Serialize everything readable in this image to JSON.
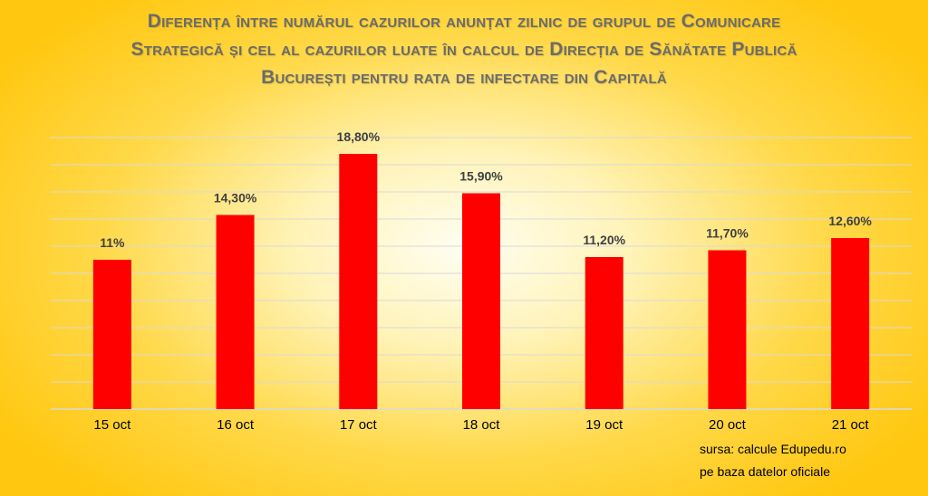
{
  "chart_data": {
    "type": "bar",
    "title_lines": [
      "Diferența între numărul cazurilor anunțat zilnic de grupul de Comunicare",
      "Strategică și cel al cazurilor luate în calcul de Direcția de Sănătate Publică",
      "București pentru rata de infectare din Capitală"
    ],
    "categories": [
      "15 oct",
      "16 oct",
      "17 oct",
      "18 oct",
      "19 oct",
      "20 oct",
      "21 oct"
    ],
    "values": [
      11,
      14.3,
      18.8,
      15.9,
      11.2,
      11.7,
      12.6
    ],
    "data_labels": [
      "11%",
      "14,30%",
      "18,80%",
      "15,90%",
      "11,20%",
      "11,70%",
      "12,60%"
    ],
    "ylim": [
      0,
      20
    ],
    "grid": true,
    "legend": false,
    "bar_color": "#ff0000",
    "grid_color": "#d9d9d9",
    "source_lines": [
      "sursa: calcule Edupedu.ro",
      "pe baza datelor oficiale"
    ]
  }
}
